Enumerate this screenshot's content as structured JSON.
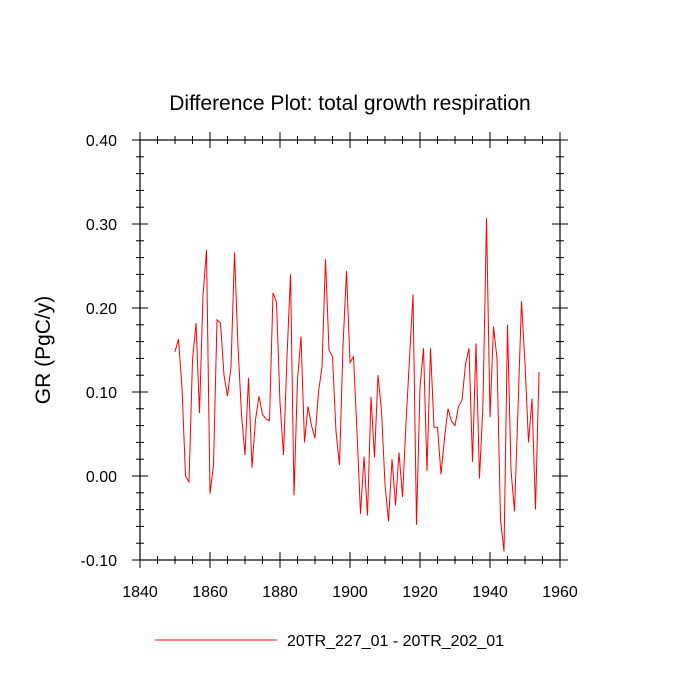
{
  "chart_data": {
    "type": "line",
    "title": "Difference Plot: total growth respiration",
    "xlabel": "",
    "ylabel": "GR  (PgC/y)",
    "xlim": [
      1840,
      1960
    ],
    "ylim": [
      -0.1,
      0.4
    ],
    "x_ticks": [
      1840,
      1860,
      1880,
      1900,
      1920,
      1940,
      1960
    ],
    "x_tick_labels": [
      "1840",
      "1860",
      "1880",
      "1900",
      "1920",
      "1940",
      "1960"
    ],
    "y_ticks": [
      -0.1,
      0.0,
      0.1,
      0.2,
      0.3,
      0.4
    ],
    "y_tick_labels": [
      "-0.10",
      "0.00",
      "0.10",
      "0.20",
      "0.30",
      "0.40"
    ],
    "grid": false,
    "legend_position": "bottom",
    "series": [
      {
        "name": "20TR_227_01 - 20TR_202_01",
        "color": "#ff0000",
        "x": [
          1850,
          1851,
          1852,
          1853,
          1854,
          1855,
          1856,
          1857,
          1858,
          1859,
          1860,
          1861,
          1862,
          1863,
          1864,
          1865,
          1866,
          1867,
          1868,
          1869,
          1870,
          1871,
          1872,
          1873,
          1874,
          1875,
          1876,
          1877,
          1878,
          1879,
          1880,
          1881,
          1882,
          1883,
          1884,
          1885,
          1886,
          1887,
          1888,
          1889,
          1890,
          1891,
          1892,
          1893,
          1894,
          1895,
          1896,
          1897,
          1898,
          1899,
          1900,
          1901,
          1902,
          1903,
          1904,
          1905,
          1906,
          1907,
          1908,
          1909,
          1910,
          1911,
          1912,
          1913,
          1914,
          1915,
          1916,
          1917,
          1918,
          1919,
          1920,
          1921,
          1922,
          1923,
          1924,
          1925,
          1926,
          1927,
          1928,
          1929,
          1930,
          1931,
          1932,
          1933,
          1934,
          1935,
          1936,
          1937,
          1938,
          1939,
          1940,
          1941,
          1942,
          1943,
          1944,
          1945,
          1946,
          1947,
          1948,
          1949,
          1950,
          1951,
          1952,
          1953,
          1954
        ],
        "values": [
          0.148,
          0.163,
          0.105,
          0.0,
          -0.007,
          0.138,
          0.182,
          0.075,
          0.215,
          0.269,
          -0.021,
          0.013,
          0.186,
          0.182,
          0.12,
          0.095,
          0.13,
          0.266,
          0.154,
          0.073,
          0.025,
          0.117,
          0.01,
          0.067,
          0.095,
          0.073,
          0.068,
          0.066,
          0.218,
          0.207,
          0.087,
          0.025,
          0.142,
          0.24,
          -0.023,
          0.115,
          0.166,
          0.04,
          0.083,
          0.06,
          0.045,
          0.1,
          0.13,
          0.258,
          0.15,
          0.142,
          0.053,
          0.013,
          0.155,
          0.244,
          0.135,
          0.142,
          0.052,
          -0.045,
          0.023,
          -0.047,
          0.094,
          0.022,
          0.12,
          0.078,
          -0.01,
          -0.054,
          0.02,
          -0.035,
          0.028,
          -0.025,
          0.063,
          0.14,
          0.216,
          -0.058,
          0.106,
          0.152,
          0.006,
          0.152,
          0.058,
          0.058,
          0.002,
          0.045,
          0.08,
          0.065,
          0.06,
          0.083,
          0.09,
          0.133,
          0.152,
          0.017,
          0.158,
          -0.003,
          0.087,
          0.307,
          0.07,
          0.178,
          0.14,
          -0.052,
          -0.09,
          0.18,
          0.007,
          -0.042,
          0.08,
          0.208,
          0.133,
          0.04,
          0.092,
          -0.04,
          0.124
        ]
      }
    ]
  }
}
